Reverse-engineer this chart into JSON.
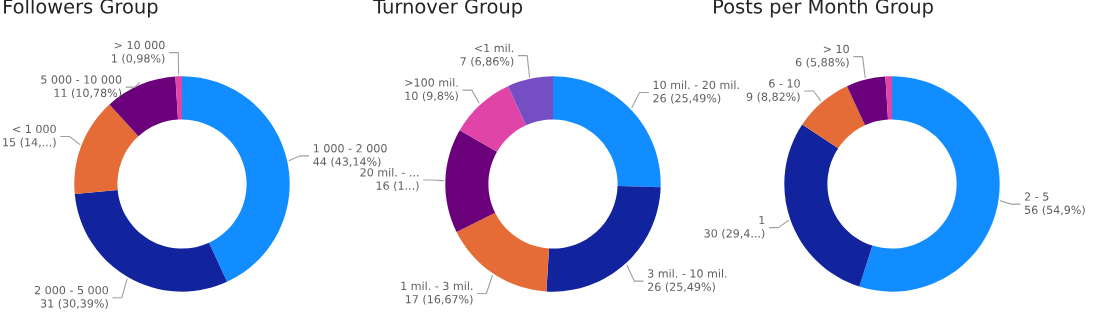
{
  "chart_data": [
    {
      "type": "donut",
      "title": "Followers Group",
      "categories": [
        "1 000 - 2 000",
        "2 000 - 5 000",
        "< 1 000",
        "5 000 - 10 000",
        "> 10 000"
      ],
      "values": [
        44,
        31,
        15,
        11,
        1
      ],
      "colors": [
        "#118dff",
        "#12239e",
        "#e66c37",
        "#6b007b",
        "#e044a7"
      ],
      "value_labels": [
        "44 (43,14%)",
        "31 (30,39%)",
        "15 (14,...)",
        "11 (10,78%)",
        "1 (0,98%)"
      ]
    },
    {
      "type": "donut",
      "title": "Turnover Group",
      "categories": [
        "10 mil. - 20 mil.",
        "3 mil. - 10 mil.",
        "1 mil. - 3 mil.",
        "20 mil. - ...",
        ">100 mil.",
        "<1 mil."
      ],
      "values": [
        26,
        26,
        17,
        16,
        10,
        7
      ],
      "colors": [
        "#118dff",
        "#12239e",
        "#e66c37",
        "#6b007b",
        "#e044a7",
        "#744ec2"
      ],
      "value_labels": [
        "26 (25,49%)",
        "26 (25,49%)",
        "17 (16,67%)",
        "16 (1...)",
        "10 (9,8%)",
        "7 (6,86%)"
      ]
    },
    {
      "type": "donut",
      "title": "Posts per Month Group",
      "categories": [
        "2 - 5",
        "1",
        "6 - 10",
        "> 10",
        null
      ],
      "values": [
        56,
        30,
        9,
        6,
        1
      ],
      "colors": [
        "#118dff",
        "#12239e",
        "#e66c37",
        "#6b007b",
        "#e044a7"
      ],
      "value_labels": [
        "56 (54,9%)",
        "30 (29,4...)",
        "9 (8,82%)",
        "6 (5,88%)",
        null
      ]
    }
  ]
}
